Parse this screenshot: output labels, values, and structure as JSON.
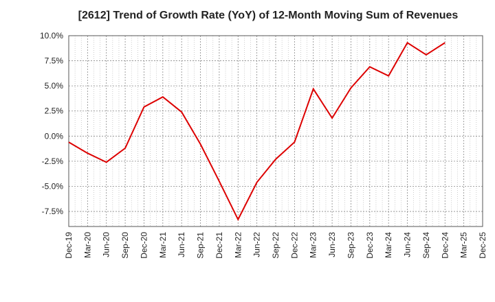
{
  "chart_data": {
    "type": "line",
    "title": "[2612]  Trend of Growth Rate (YoY) of 12-Month Moving Sum of Revenues",
    "xlabel": "",
    "ylabel": "",
    "ylim": [
      -9.0,
      10.0
    ],
    "yticks": [
      10.0,
      7.5,
      5.0,
      2.5,
      0.0,
      -2.5,
      -5.0,
      -7.5
    ],
    "ytick_labels": [
      "10.0%",
      "7.5%",
      "5.0%",
      "2.5%",
      "0.0%",
      "-2.5%",
      "-5.0%",
      "-7.5%"
    ],
    "xtick_labels": [
      "Dec-19",
      "Mar-20",
      "Jun-20",
      "Sep-20",
      "Dec-20",
      "Mar-21",
      "Jun-21",
      "Sep-21",
      "Dec-21",
      "Mar-22",
      "Jun-22",
      "Sep-22",
      "Dec-22",
      "Mar-23",
      "Jun-23",
      "Sep-23",
      "Dec-23",
      "Mar-24",
      "Jun-24",
      "Sep-24",
      "Dec-24",
      "Mar-25",
      "Dec-25"
    ],
    "grid": true,
    "series": [
      {
        "color": "#dd0000",
        "values": [
          -0.6,
          -1.7,
          -2.6,
          -1.2,
          2.9,
          3.9,
          2.4,
          -0.8,
          -4.5,
          -8.3,
          -4.6,
          -2.3,
          -0.6,
          4.7,
          1.8,
          4.8,
          6.9,
          6.0,
          9.3,
          8.1,
          9.3
        ]
      }
    ]
  }
}
